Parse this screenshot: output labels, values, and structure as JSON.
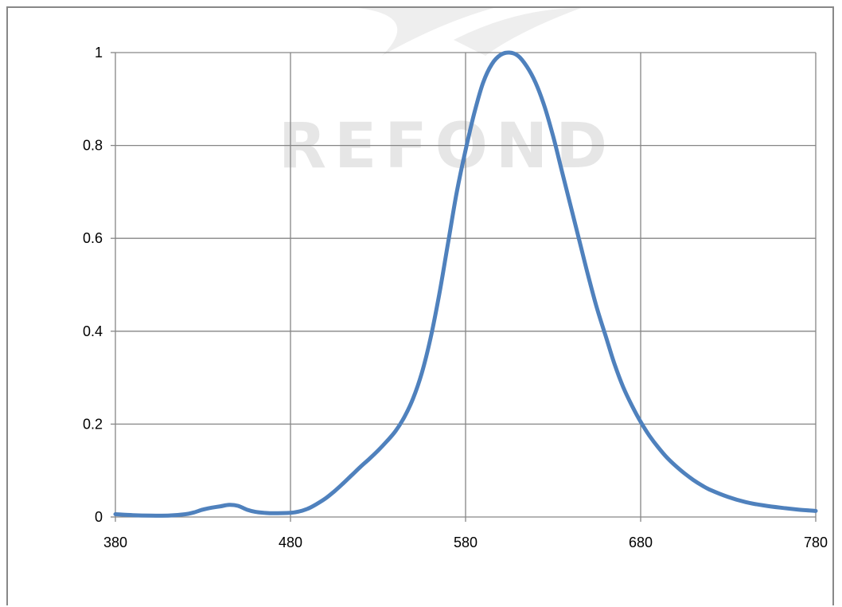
{
  "watermark": {
    "text": "REFOND"
  },
  "colors": {
    "series": "#4f81bd",
    "grid": "#868686",
    "frame": "#888888",
    "watermark": "#e6e6e6"
  },
  "chart_data": {
    "type": "line",
    "title": "",
    "xlabel": "",
    "ylabel": "",
    "xlim": [
      380,
      780
    ],
    "ylim": [
      0,
      1
    ],
    "grid": true,
    "legend": "none",
    "x_ticks": [
      {
        "value": 380,
        "label": "380"
      },
      {
        "value": 480,
        "label": "480"
      },
      {
        "value": 580,
        "label": "580"
      },
      {
        "value": 680,
        "label": "680"
      },
      {
        "value": 780,
        "label": "780"
      }
    ],
    "y_ticks": [
      {
        "value": 0,
        "label": "0"
      },
      {
        "value": 0.2,
        "label": "0.2"
      },
      {
        "value": 0.4,
        "label": "0.4"
      },
      {
        "value": 0.6,
        "label": "0.6"
      },
      {
        "value": 0.8,
        "label": "0.8"
      },
      {
        "value": 1,
        "label": "1"
      }
    ],
    "series": [
      {
        "color": "#4f81bd",
        "points": [
          [
            380,
            0.006
          ],
          [
            390,
            0.004
          ],
          [
            400,
            0.003
          ],
          [
            410,
            0.003
          ],
          [
            420,
            0.006
          ],
          [
            425,
            0.01
          ],
          [
            430,
            0.016
          ],
          [
            435,
            0.02
          ],
          [
            440,
            0.023
          ],
          [
            445,
            0.026
          ],
          [
            450,
            0.024
          ],
          [
            455,
            0.016
          ],
          [
            460,
            0.011
          ],
          [
            465,
            0.009
          ],
          [
            470,
            0.008
          ],
          [
            480,
            0.009
          ],
          [
            485,
            0.012
          ],
          [
            490,
            0.018
          ],
          [
            495,
            0.028
          ],
          [
            500,
            0.04
          ],
          [
            505,
            0.055
          ],
          [
            510,
            0.072
          ],
          [
            515,
            0.09
          ],
          [
            520,
            0.108
          ],
          [
            525,
            0.125
          ],
          [
            530,
            0.143
          ],
          [
            535,
            0.163
          ],
          [
            540,
            0.185
          ],
          [
            545,
            0.215
          ],
          [
            550,
            0.255
          ],
          [
            555,
            0.31
          ],
          [
            560,
            0.385
          ],
          [
            565,
            0.48
          ],
          [
            570,
            0.59
          ],
          [
            575,
            0.7
          ],
          [
            580,
            0.79
          ],
          [
            585,
            0.87
          ],
          [
            590,
            0.935
          ],
          [
            595,
            0.975
          ],
          [
            600,
            0.995
          ],
          [
            605,
            1.0
          ],
          [
            610,
            0.993
          ],
          [
            615,
            0.97
          ],
          [
            620,
            0.935
          ],
          [
            625,
            0.885
          ],
          [
            630,
            0.82
          ],
          [
            635,
            0.745
          ],
          [
            640,
            0.67
          ],
          [
            645,
            0.595
          ],
          [
            650,
            0.52
          ],
          [
            655,
            0.45
          ],
          [
            660,
            0.39
          ],
          [
            665,
            0.33
          ],
          [
            670,
            0.28
          ],
          [
            675,
            0.24
          ],
          [
            680,
            0.205
          ],
          [
            685,
            0.175
          ],
          [
            690,
            0.15
          ],
          [
            695,
            0.128
          ],
          [
            700,
            0.11
          ],
          [
            705,
            0.094
          ],
          [
            710,
            0.08
          ],
          [
            715,
            0.068
          ],
          [
            720,
            0.058
          ],
          [
            730,
            0.043
          ],
          [
            740,
            0.032
          ],
          [
            750,
            0.025
          ],
          [
            760,
            0.02
          ],
          [
            770,
            0.016
          ],
          [
            780,
            0.013
          ]
        ]
      }
    ]
  }
}
